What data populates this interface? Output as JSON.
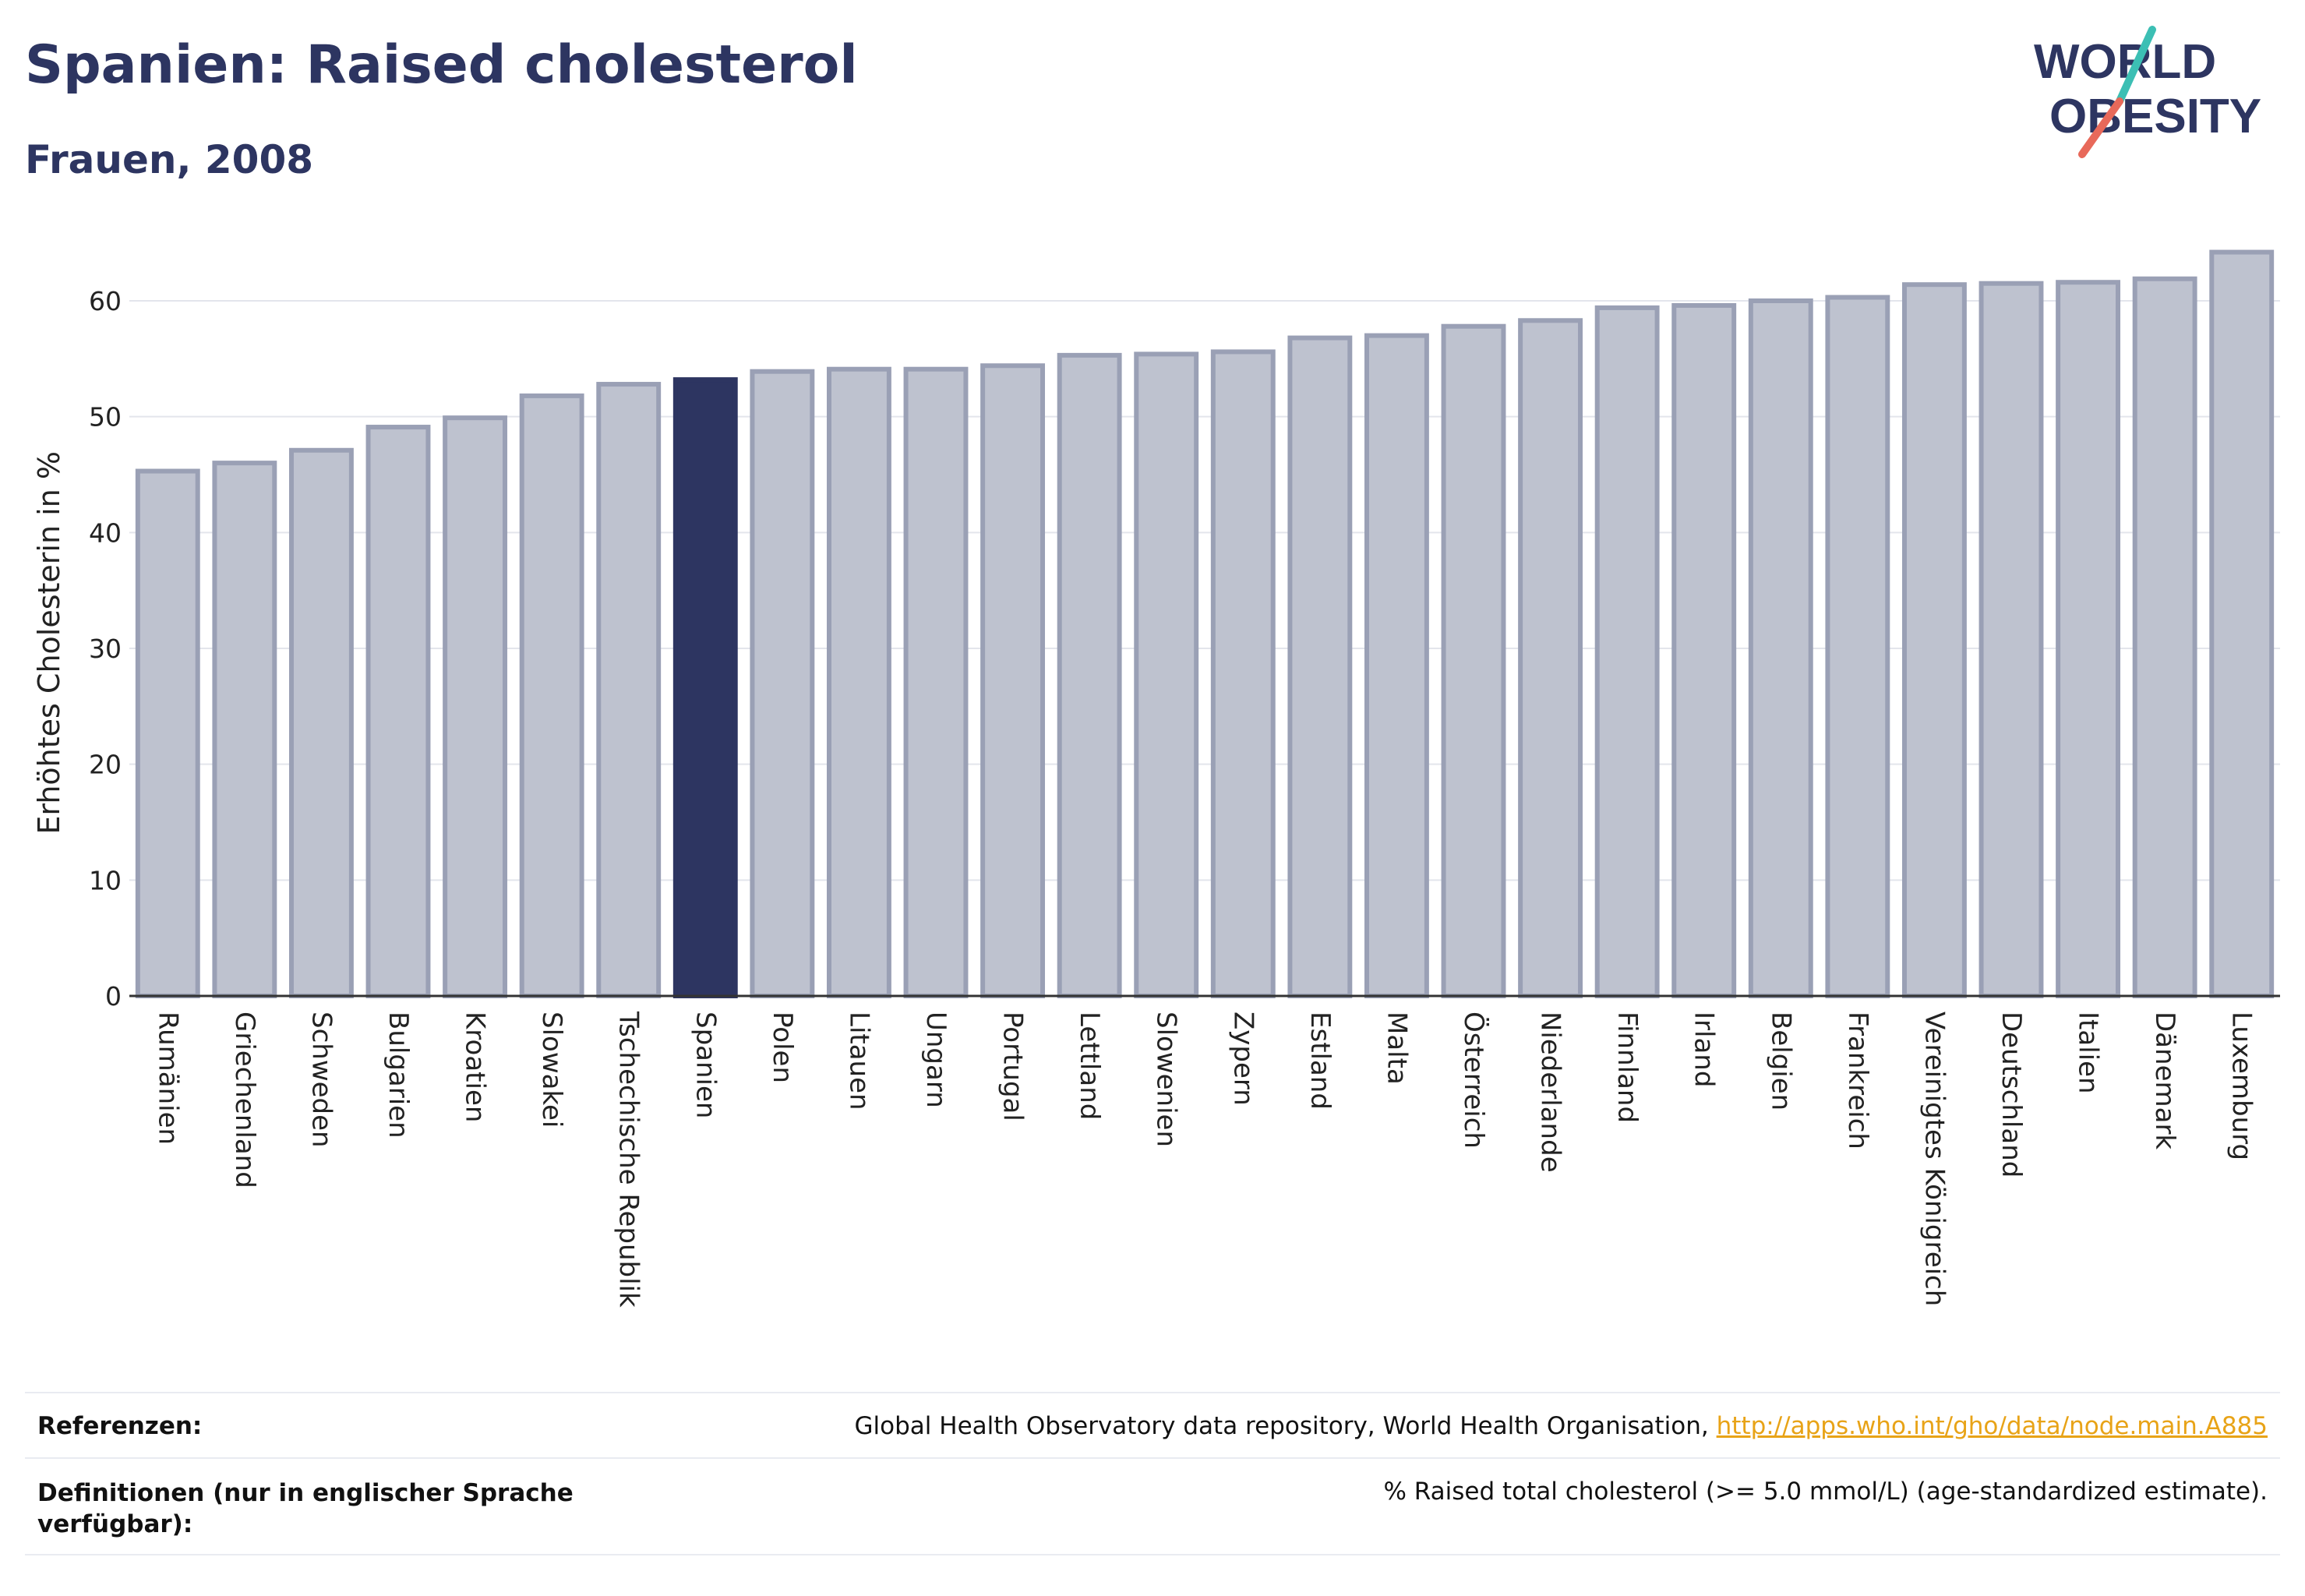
{
  "header": {
    "title": "Spanien: Raised cholesterol",
    "subtitle": "Frauen, 2008"
  },
  "logo": {
    "line1": "WORLD",
    "line2": "OBESITY",
    "text_color": "#2d3561",
    "slash_colors": [
      "#3cbfb4",
      "#e8695a"
    ]
  },
  "colors": {
    "highlight": "#2d3561",
    "bar_fill": "#bec2cf",
    "bar_stroke": "#9aa0b5",
    "grid": "#e3e5ec",
    "link": "#e8a317"
  },
  "chart_data": {
    "type": "bar",
    "title": "Spanien: Raised cholesterol",
    "subtitle": "Frauen, 2008",
    "ylabel": "Erhöhtes Cholesterin in %",
    "xlabel": "",
    "ylim": [
      0,
      65
    ],
    "yticks": [
      0,
      10,
      20,
      30,
      40,
      50,
      60
    ],
    "grid": true,
    "highlight": "Spanien",
    "categories": [
      "Rumänien",
      "Griechenland",
      "Schweden",
      "Bulgarien",
      "Kroatien",
      "Slowakei",
      "Tschechische Republik",
      "Spanien",
      "Polen",
      "Litauen",
      "Ungarn",
      "Portugal",
      "Lettland",
      "Slowenien",
      "Zypern",
      "Estland",
      "Malta",
      "Österreich",
      "Niederlande",
      "Finnland",
      "Irland",
      "Belgien",
      "Frankreich",
      "Vereinigtes Königreich",
      "Deutschland",
      "Italien",
      "Dänemark",
      "Luxemburg"
    ],
    "values": [
      45.3,
      46.0,
      47.1,
      49.1,
      49.9,
      51.8,
      52.8,
      53.2,
      53.9,
      54.1,
      54.1,
      54.4,
      55.3,
      55.4,
      55.6,
      56.8,
      57.0,
      57.8,
      58.3,
      59.4,
      59.6,
      60.0,
      60.3,
      61.4,
      61.5,
      61.6,
      61.9,
      64.2
    ]
  },
  "footer": {
    "references_label": "Referenzen:",
    "references_text": "Global Health Observatory data repository, World Health Organisation, ",
    "references_link": "http://apps.who.int/gho/data/node.main.A885",
    "definitions_label": "Definitionen (nur in englischer Sprache verfügbar):",
    "definitions_text": "% Raised total cholesterol (>= 5.0 mmol/L) (age-standardized estimate)."
  }
}
